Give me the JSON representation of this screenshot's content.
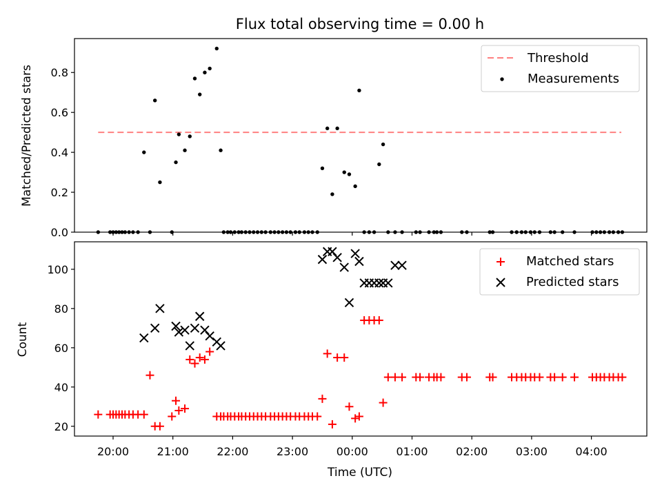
{
  "chart_data": [
    {
      "type": "scatter",
      "title": "Flux total observing time = 0.00 h",
      "xlabel": "",
      "ylabel": "Matched/Predicted stars",
      "ylim": [
        0,
        0.97
      ],
      "yticks": [
        "0.0",
        "0.2",
        "0.4",
        "0.6",
        "0.8"
      ],
      "legend_position": "upper right",
      "threshold": {
        "name": "Threshold",
        "value": 0.5,
        "x_start": "19:45",
        "x_end": "04:30",
        "color": "#ff7f7f"
      },
      "series": [
        {
          "name": "Measurements",
          "color": "#000000",
          "x": [
            "19:45",
            "19:57",
            "20:00",
            "20:03",
            "20:06",
            "20:09",
            "20:12",
            "20:16",
            "20:20",
            "20:25",
            "20:31",
            "20:37",
            "20:42",
            "20:47",
            "20:59",
            "21:03",
            "21:06",
            "21:12",
            "21:17",
            "21:22",
            "21:27",
            "21:32",
            "21:37",
            "21:44",
            "21:48",
            "21:51",
            "21:55",
            "21:58",
            "22:02",
            "22:06",
            "22:09",
            "22:13",
            "22:17",
            "22:21",
            "22:25",
            "22:29",
            "22:33",
            "22:38",
            "22:42",
            "22:46",
            "22:50",
            "22:54",
            "22:58",
            "23:03",
            "23:07",
            "23:12",
            "23:16",
            "23:20",
            "23:25",
            "23:30",
            "23:35",
            "23:40",
            "23:45",
            "23:52",
            "23:57",
            "00:03",
            "00:07",
            "00:12",
            "00:17",
            "00:22",
            "00:27",
            "00:31",
            "00:36",
            "00:43",
            "00:50",
            "01:04",
            "01:08",
            "01:17",
            "01:22",
            "01:25",
            "01:29",
            "01:50",
            "01:55",
            "02:18",
            "02:21",
            "02:40",
            "02:45",
            "02:50",
            "02:54",
            "02:59",
            "03:03",
            "03:08",
            "03:19",
            "03:23",
            "03:31",
            "03:43",
            "04:01",
            "04:05",
            "04:09",
            "04:13",
            "04:18",
            "04:22",
            "04:27",
            "04:31"
          ],
          "y": [
            0,
            0,
            0,
            0,
            0,
            0,
            0,
            0,
            0,
            0,
            0.4,
            0,
            0.66,
            0.25,
            0,
            0.35,
            0.49,
            0.41,
            0.48,
            0.77,
            0.69,
            0.8,
            0.82,
            0.92,
            0.41,
            0,
            0,
            0,
            0,
            0,
            0,
            0,
            0,
            0,
            0,
            0,
            0,
            0,
            0,
            0,
            0,
            0,
            0,
            0,
            0,
            0,
            0,
            0,
            0,
            0.32,
            0.52,
            0.19,
            0.52,
            0.3,
            0.29,
            0.23,
            0.71,
            0,
            0,
            0,
            0.34,
            0.44,
            0,
            0,
            0,
            0,
            0,
            0,
            0,
            0,
            0,
            0,
            0,
            0,
            0,
            0,
            0,
            0,
            0,
            0,
            0,
            0,
            0,
            0,
            0,
            0,
            0,
            0,
            0,
            0,
            0,
            0,
            0,
            0
          ]
        }
      ]
    },
    {
      "type": "scatter",
      "title": "",
      "xlabel": "Time (UTC)",
      "ylabel": "Count",
      "ylim": [
        15,
        114
      ],
      "yticks": [
        "20",
        "40",
        "60",
        "80",
        "100"
      ],
      "xticks": [
        "20:00",
        "21:00",
        "22:00",
        "23:00",
        "00:00",
        "01:00",
        "02:00",
        "03:00",
        "04:00"
      ],
      "legend_position": "upper right",
      "series": [
        {
          "name": "Matched stars",
          "color": "#ff0000",
          "marker": "plus",
          "x": [
            "19:45",
            "19:57",
            "20:00",
            "20:03",
            "20:06",
            "20:09",
            "20:12",
            "20:16",
            "20:20",
            "20:25",
            "20:31",
            "20:37",
            "20:42",
            "20:47",
            "20:59",
            "21:03",
            "21:06",
            "21:12",
            "21:17",
            "21:22",
            "21:27",
            "21:32",
            "21:37",
            "21:44",
            "21:48",
            "21:51",
            "21:55",
            "21:58",
            "22:02",
            "22:06",
            "22:09",
            "22:13",
            "22:17",
            "22:21",
            "22:25",
            "22:29",
            "22:33",
            "22:38",
            "22:42",
            "22:46",
            "22:50",
            "22:54",
            "22:58",
            "23:03",
            "23:07",
            "23:12",
            "23:16",
            "23:20",
            "23:25",
            "23:30",
            "23:35",
            "23:40",
            "23:45",
            "23:52",
            "23:57",
            "00:03",
            "00:07",
            "00:12",
            "00:17",
            "00:22",
            "00:27",
            "00:31",
            "00:36",
            "00:43",
            "00:50",
            "01:04",
            "01:08",
            "01:17",
            "01:22",
            "01:25",
            "01:29",
            "01:50",
            "01:55",
            "02:18",
            "02:21",
            "02:40",
            "02:45",
            "02:50",
            "02:54",
            "02:59",
            "03:03",
            "03:08",
            "03:19",
            "03:23",
            "03:31",
            "03:43",
            "04:01",
            "04:05",
            "04:09",
            "04:13",
            "04:18",
            "04:22",
            "04:27",
            "04:31"
          ],
          "y": [
            26,
            26,
            26,
            26,
            26,
            26,
            26,
            26,
            26,
            26,
            26,
            46,
            20,
            20,
            25,
            33,
            28,
            29,
            54,
            52,
            55,
            54,
            58,
            25,
            25,
            25,
            25,
            25,
            25,
            25,
            25,
            25,
            25,
            25,
            25,
            25,
            25,
            25,
            25,
            25,
            25,
            25,
            25,
            25,
            25,
            25,
            25,
            25,
            25,
            34,
            57,
            21,
            55,
            55,
            30,
            24,
            25,
            74,
            74,
            74,
            74,
            32,
            45,
            45,
            45,
            45,
            45,
            45,
            45,
            45,
            45,
            45,
            45,
            45,
            45,
            45,
            45,
            45,
            45,
            45,
            45,
            45,
            45,
            45,
            45,
            45,
            45,
            45,
            45,
            45,
            45,
            45,
            45,
            45
          ]
        },
        {
          "name": "Predicted stars",
          "color": "#000000",
          "marker": "x",
          "x": [
            "20:31",
            "20:42",
            "20:47",
            "21:03",
            "21:06",
            "21:12",
            "21:17",
            "21:22",
            "21:27",
            "21:32",
            "21:37",
            "21:44",
            "21:48",
            "23:30",
            "23:35",
            "23:40",
            "23:45",
            "23:52",
            "23:57",
            "00:03",
            "00:07",
            "00:12",
            "00:17",
            "00:22",
            "00:27",
            "00:31",
            "00:36",
            "00:43",
            "00:50"
          ],
          "y": [
            65,
            70,
            80,
            71,
            68,
            69,
            61,
            70,
            76,
            69,
            66,
            63,
            61,
            105,
            109,
            109,
            106,
            101,
            83,
            108,
            104,
            93,
            93,
            93,
            93,
            93,
            93,
            102,
            102
          ]
        }
      ]
    }
  ]
}
